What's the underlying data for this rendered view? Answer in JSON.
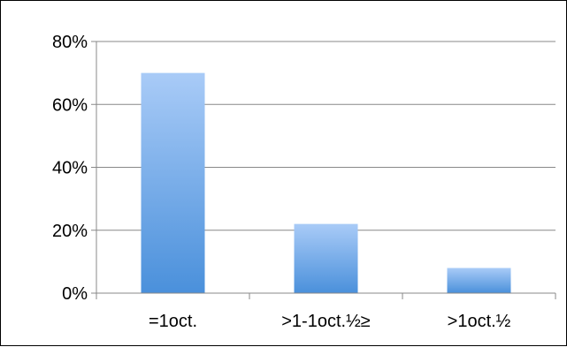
{
  "chart_data": {
    "type": "bar",
    "title": "",
    "xlabel": "",
    "ylabel": "",
    "categories": [
      "=1oct.",
      ">1-1oct.½≥",
      ">1oct.½"
    ],
    "values": [
      0.7,
      0.22,
      0.08
    ],
    "ylim": [
      0,
      0.8
    ],
    "yticks": [
      0,
      0.2,
      0.4,
      0.6,
      0.8
    ],
    "ytick_labels": [
      "0%",
      "20%",
      "40%",
      "60%",
      "80%"
    ],
    "grid": "horizontal",
    "legend": "none",
    "colors": {
      "bar_top": "#a9cbf7",
      "bar_bottom": "#4a90db",
      "grid": "#888888",
      "axis": "#888888"
    }
  }
}
